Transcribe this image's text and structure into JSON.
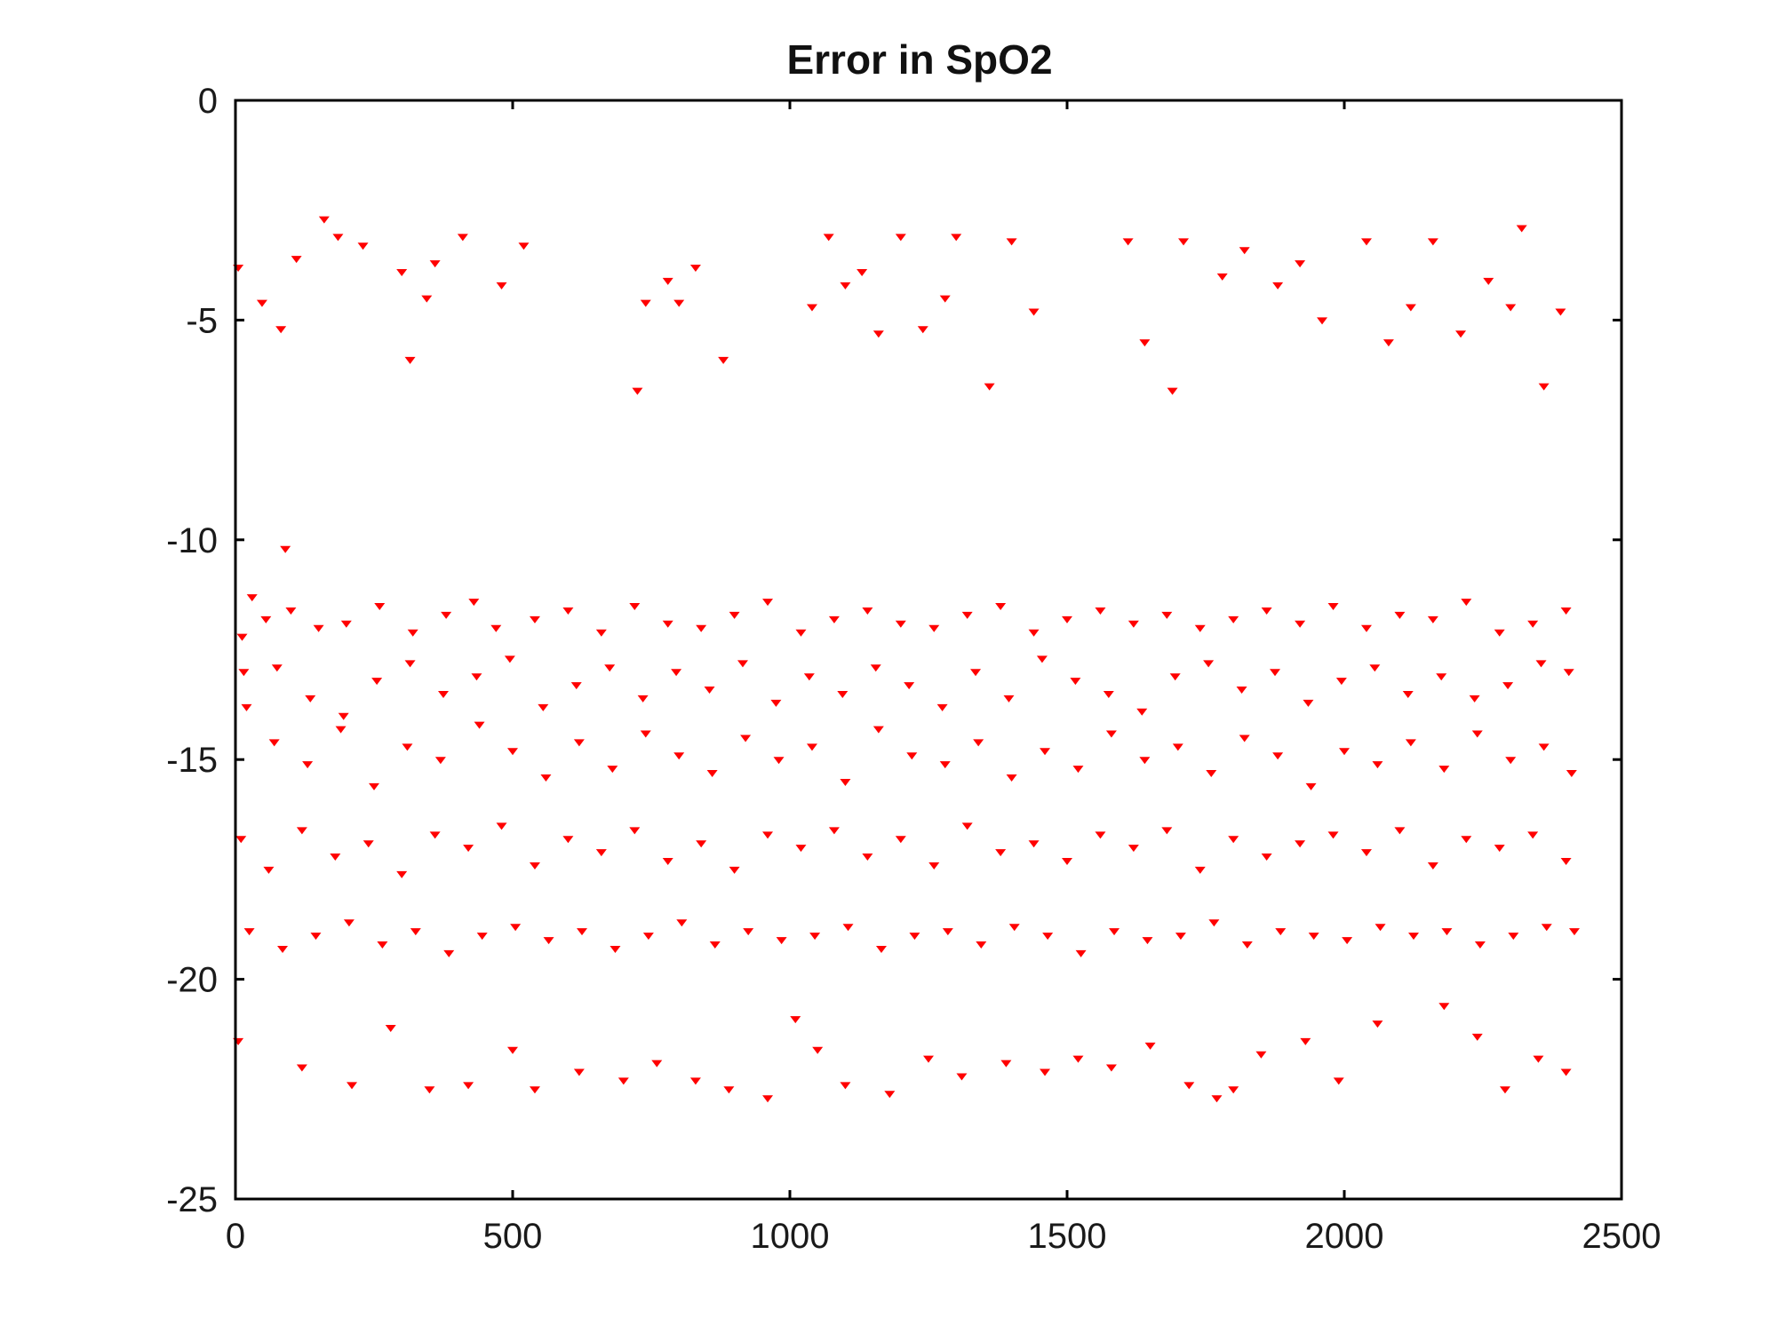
{
  "chart_data": {
    "type": "scatter",
    "title": "Error in SpO2",
    "xlabel": "",
    "ylabel": "",
    "xlim": [
      0,
      2500
    ],
    "ylim": [
      -25,
      0
    ],
    "x_ticks": [
      0,
      500,
      1000,
      1500,
      2000,
      2500
    ],
    "y_ticks": [
      0,
      -5,
      -10,
      -15,
      -20,
      -25
    ],
    "x_tick_labels": [
      "0",
      "500",
      "1000",
      "1500",
      "2000",
      "2500"
    ],
    "y_tick_labels": [
      "0",
      "-5",
      "-10",
      "-15",
      "-20",
      "-25"
    ],
    "grid": false,
    "legend": "none",
    "marker": "triangle",
    "marker_color": "#ff0000",
    "axis_color": "#000000",
    "series": [
      {
        "x": [
          5,
          48,
          82,
          110,
          160,
          185,
          230,
          300,
          315,
          345,
          360,
          410,
          480,
          520,
          725,
          740,
          780,
          800,
          830,
          880,
          1040,
          1070,
          1100,
          1130,
          1160,
          1200,
          1240,
          1280,
          1300,
          1360,
          1400,
          1440,
          1610,
          1640,
          1690,
          1710,
          1780,
          1820,
          1880,
          1920,
          1960,
          2040,
          2080,
          2120,
          2160,
          2210,
          2260,
          2300,
          2320,
          2360,
          2390,
          90,
          12,
          30,
          55,
          100,
          150,
          200,
          260,
          320,
          380,
          430,
          470,
          540,
          600,
          660,
          720,
          780,
          840,
          900,
          960,
          1020,
          1080,
          1140,
          1200,
          1260,
          1320,
          1380,
          1440,
          1500,
          1560,
          1620,
          1680,
          1740,
          1800,
          1860,
          1920,
          1980,
          2040,
          2100,
          2160,
          2220,
          2280,
          2340,
          2400,
          20,
          70,
          130,
          190,
          250,
          310,
          370,
          440,
          500,
          560,
          620,
          680,
          740,
          800,
          860,
          920,
          980,
          1040,
          1100,
          1160,
          1220,
          1280,
          1340,
          1400,
          1460,
          1520,
          1580,
          1640,
          1700,
          1760,
          1820,
          1880,
          1940,
          2000,
          2060,
          2120,
          2180,
          2240,
          2300,
          2360,
          2410,
          10,
          60,
          120,
          180,
          240,
          300,
          360,
          420,
          480,
          540,
          600,
          660,
          720,
          780,
          840,
          900,
          960,
          1020,
          1080,
          1140,
          1200,
          1260,
          1320,
          1380,
          1440,
          1500,
          1560,
          1620,
          1680,
          1740,
          1800,
          1860,
          1920,
          1980,
          2040,
          2100,
          2160,
          2220,
          2280,
          2340,
          2400,
          25,
          85,
          145,
          205,
          265,
          325,
          385,
          445,
          505,
          565,
          625,
          685,
          745,
          805,
          865,
          925,
          985,
          1045,
          1105,
          1165,
          1225,
          1285,
          1345,
          1405,
          1465,
          1525,
          1585,
          1645,
          1705,
          1765,
          1825,
          1885,
          1945,
          2005,
          2065,
          2125,
          2185,
          2245,
          2305,
          2365,
          2415,
          15,
          75,
          135,
          195,
          255,
          315,
          375,
          435,
          495,
          555,
          615,
          675,
          735,
          795,
          855,
          915,
          975,
          1035,
          1095,
          1155,
          1215,
          1275,
          1335,
          1395,
          1455,
          1515,
          1575,
          1635,
          1695,
          1755,
          1815,
          1875,
          1935,
          1995,
          2055,
          2115,
          2175,
          2235,
          2295,
          2355,
          2405,
          5,
          120,
          210,
          280,
          350,
          420,
          500,
          540,
          620,
          700,
          760,
          830,
          890,
          960,
          1010,
          1050,
          1100,
          1180,
          1250,
          1310,
          1390,
          1460,
          1520,
          1580,
          1650,
          1720,
          1770,
          1800,
          1850,
          1930,
          1990,
          2060,
          2180,
          2240,
          2290,
          2350,
          2400
        ],
        "y": [
          -3.8,
          -4.6,
          -5.2,
          -3.6,
          -2.7,
          -3.1,
          -3.3,
          -3.9,
          -5.9,
          -4.5,
          -3.7,
          -3.1,
          -4.2,
          -3.3,
          -6.6,
          -4.6,
          -4.1,
          -4.6,
          -3.8,
          -5.9,
          -4.7,
          -3.1,
          -4.2,
          -3.9,
          -5.3,
          -3.1,
          -5.2,
          -4.5,
          -3.1,
          -6.5,
          -3.2,
          -4.8,
          -3.2,
          -5.5,
          -6.6,
          -3.2,
          -4.0,
          -3.4,
          -4.2,
          -3.7,
          -5.0,
          -3.2,
          -5.5,
          -4.7,
          -3.2,
          -5.3,
          -4.1,
          -4.7,
          -2.9,
          -6.5,
          -4.8,
          -10.2,
          -12.2,
          -11.3,
          -11.8,
          -11.6,
          -12.0,
          -11.9,
          -11.5,
          -12.1,
          -11.7,
          -11.4,
          -12.0,
          -11.8,
          -11.6,
          -12.1,
          -11.5,
          -11.9,
          -12.0,
          -11.7,
          -11.4,
          -12.1,
          -11.8,
          -11.6,
          -11.9,
          -12.0,
          -11.7,
          -11.5,
          -12.1,
          -11.8,
          -11.6,
          -11.9,
          -11.7,
          -12.0,
          -11.8,
          -11.6,
          -11.9,
          -11.5,
          -12.0,
          -11.7,
          -11.8,
          -11.4,
          -12.1,
          -11.9,
          -11.6,
          -13.8,
          -14.6,
          -15.1,
          -14.3,
          -15.6,
          -14.7,
          -15.0,
          -14.2,
          -14.8,
          -15.4,
          -14.6,
          -15.2,
          -14.4,
          -14.9,
          -15.3,
          -14.5,
          -15.0,
          -14.7,
          -15.5,
          -14.3,
          -14.9,
          -15.1,
          -14.6,
          -15.4,
          -14.8,
          -15.2,
          -14.4,
          -15.0,
          -14.7,
          -15.3,
          -14.5,
          -14.9,
          -15.6,
          -14.8,
          -15.1,
          -14.6,
          -15.2,
          -14.4,
          -15.0,
          -14.7,
          -15.3,
          -16.8,
          -17.5,
          -16.6,
          -17.2,
          -16.9,
          -17.6,
          -16.7,
          -17.0,
          -16.5,
          -17.4,
          -16.8,
          -17.1,
          -16.6,
          -17.3,
          -16.9,
          -17.5,
          -16.7,
          -17.0,
          -16.6,
          -17.2,
          -16.8,
          -17.4,
          -16.5,
          -17.1,
          -16.9,
          -17.3,
          -16.7,
          -17.0,
          -16.6,
          -17.5,
          -16.8,
          -17.2,
          -16.9,
          -16.7,
          -17.1,
          -16.6,
          -17.4,
          -16.8,
          -17.0,
          -16.7,
          -17.3,
          -18.9,
          -19.3,
          -19.0,
          -18.7,
          -19.2,
          -18.9,
          -19.4,
          -19.0,
          -18.8,
          -19.1,
          -18.9,
          -19.3,
          -19.0,
          -18.7,
          -19.2,
          -18.9,
          -19.1,
          -19.0,
          -18.8,
          -19.3,
          -19.0,
          -18.9,
          -19.2,
          -18.8,
          -19.0,
          -19.4,
          -18.9,
          -19.1,
          -19.0,
          -18.7,
          -19.2,
          -18.9,
          -19.0,
          -19.1,
          -18.8,
          -19.0,
          -18.9,
          -19.2,
          -19.0,
          -18.8,
          -18.9,
          -13.0,
          -12.9,
          -13.6,
          -14.0,
          -13.2,
          -12.8,
          -13.5,
          -13.1,
          -12.7,
          -13.8,
          -13.3,
          -12.9,
          -13.6,
          -13.0,
          -13.4,
          -12.8,
          -13.7,
          -13.1,
          -13.5,
          -12.9,
          -13.3,
          -13.8,
          -13.0,
          -13.6,
          -12.7,
          -13.2,
          -13.5,
          -13.9,
          -13.1,
          -12.8,
          -13.4,
          -13.0,
          -13.7,
          -13.2,
          -12.9,
          -13.5,
          -13.1,
          -13.6,
          -13.3,
          -12.8,
          -13.0,
          -21.4,
          -22.0,
          -22.4,
          -21.1,
          -22.5,
          -22.4,
          -21.6,
          -22.5,
          -22.1,
          -22.3,
          -21.9,
          -22.3,
          -22.5,
          -22.7,
          -20.9,
          -21.6,
          -22.4,
          -22.6,
          -21.8,
          -22.2,
          -21.9,
          -22.1,
          -21.8,
          -22.0,
          -21.5,
          -22.4,
          -22.7,
          -22.5,
          -21.7,
          -21.4,
          -22.3,
          -21.0,
          -20.6,
          -21.3,
          -22.5,
          -21.8,
          -22.1
        ]
      }
    ]
  }
}
